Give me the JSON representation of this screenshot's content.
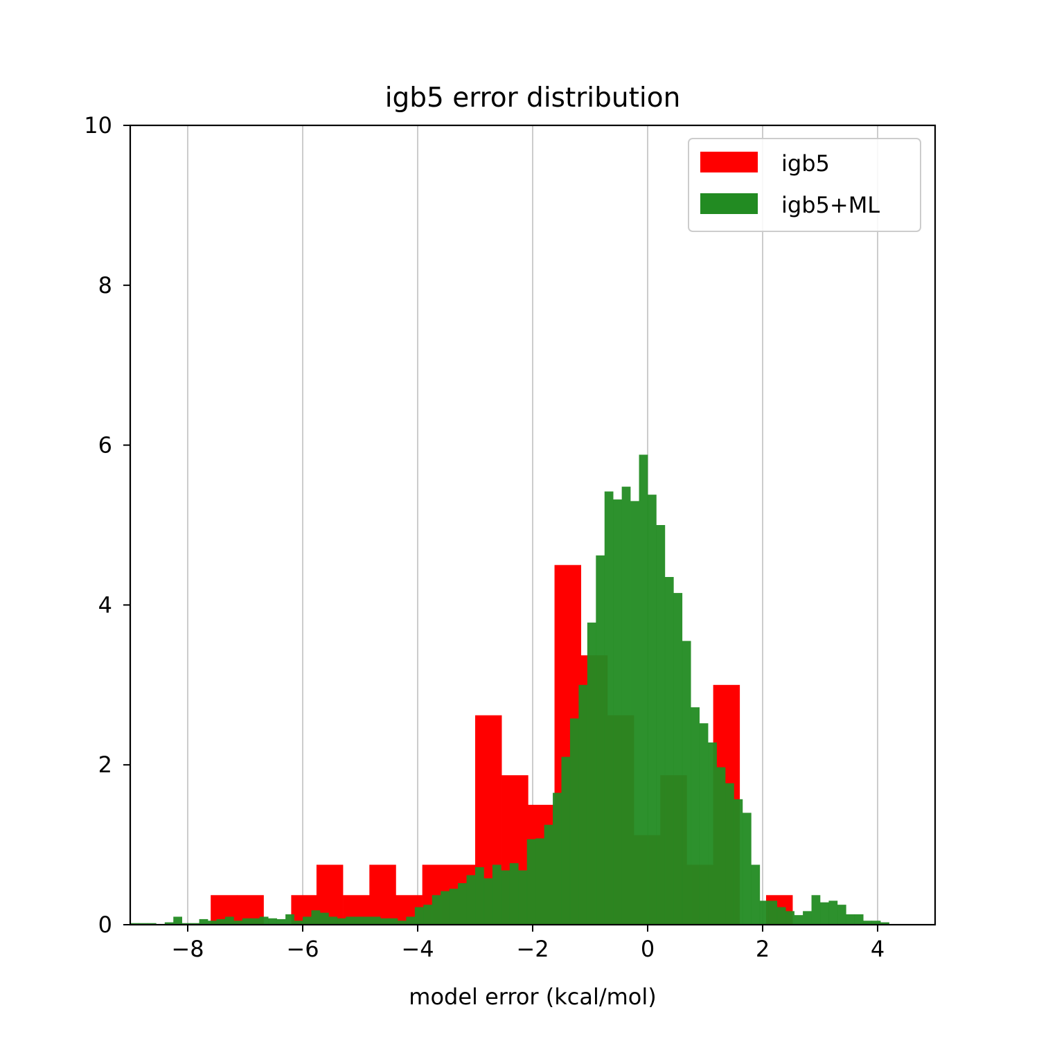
{
  "chart_data": {
    "type": "bar",
    "title": "igb5 error distribution",
    "xlabel": "model error (kcal/mol)",
    "ylabel": "",
    "xlim": [
      -9,
      5
    ],
    "ylim": [
      0,
      10
    ],
    "x_ticks": [
      -8,
      -6,
      -4,
      -2,
      0,
      2,
      4
    ],
    "x_tick_labels": [
      "−8",
      "−6",
      "−4",
      "−2",
      "0",
      "2",
      "4"
    ],
    "y_ticks": [
      0,
      2,
      4,
      6,
      8,
      10
    ],
    "y_tick_labels": [
      "0",
      "2",
      "4",
      "6",
      "8",
      "10"
    ],
    "grid": "vertical",
    "legend_position": "top-right",
    "series": [
      {
        "name": "igb5",
        "color": "#ff0000",
        "opacity": 1.0,
        "bin_edges": [
          -7.6,
          -7.14,
          -6.68,
          -6.2,
          -5.76,
          -5.3,
          -4.84,
          -4.38,
          -3.92,
          -3.46,
          -3.0,
          -2.54,
          -2.08,
          -1.62,
          -1.16,
          -0.7,
          -0.24,
          0.22,
          0.68,
          1.14,
          1.6,
          2.06,
          2.52
        ],
        "values": [
          0.37,
          0.37,
          0,
          0.37,
          0.75,
          0.37,
          0.75,
          0.37,
          0.75,
          0.75,
          2.62,
          1.87,
          1.5,
          4.5,
          3.37,
          2.62,
          1.12,
          1.87,
          0.75,
          3.0,
          0,
          0.37
        ]
      },
      {
        "name": "igb5+ML",
        "color": "#228b22",
        "opacity": 0.95,
        "bin_edges": [
          -9.0,
          -8.85,
          -8.7,
          -8.55,
          -8.4,
          -8.25,
          -8.1,
          -7.95,
          -7.8,
          -7.65,
          -7.5,
          -7.35,
          -7.2,
          -7.05,
          -6.9,
          -6.75,
          -6.6,
          -6.45,
          -6.3,
          -6.15,
          -6.0,
          -5.85,
          -5.7,
          -5.55,
          -5.4,
          -5.25,
          -5.1,
          -4.95,
          -4.8,
          -4.65,
          -4.5,
          -4.35,
          -4.2,
          -4.05,
          -3.9,
          -3.75,
          -3.6,
          -3.45,
          -3.3,
          -3.15,
          -3.0,
          -2.85,
          -2.7,
          -2.55,
          -2.4,
          -2.25,
          -2.1,
          -1.95,
          -1.8,
          -1.65,
          -1.5,
          -1.35,
          -1.2,
          -1.05,
          -0.9,
          -0.75,
          -0.6,
          -0.45,
          -0.3,
          -0.15,
          0.0,
          0.15,
          0.3,
          0.45,
          0.6,
          0.75,
          0.9,
          1.05,
          1.2,
          1.35,
          1.5,
          1.65,
          1.8,
          1.95,
          2.1,
          2.25,
          2.4,
          2.55,
          2.7,
          2.85,
          3.0,
          3.15,
          3.3,
          3.45,
          3.6,
          3.75,
          3.9,
          4.05,
          4.2,
          4.35
        ],
        "values": [
          0.02,
          0.02,
          0.02,
          0.0,
          0.03,
          0.1,
          0.02,
          0.02,
          0.07,
          0.05,
          0.07,
          0.1,
          0.05,
          0.08,
          0.08,
          0.1,
          0.08,
          0.07,
          0.13,
          0.05,
          0.1,
          0.18,
          0.15,
          0.1,
          0.08,
          0.1,
          0.1,
          0.1,
          0.1,
          0.08,
          0.08,
          0.05,
          0.1,
          0.22,
          0.25,
          0.37,
          0.42,
          0.45,
          0.52,
          0.62,
          0.72,
          0.58,
          0.75,
          0.68,
          0.77,
          0.68,
          1.07,
          1.08,
          1.25,
          1.65,
          2.1,
          2.58,
          3.0,
          3.78,
          4.62,
          5.42,
          5.32,
          5.48,
          5.3,
          5.88,
          5.38,
          5.0,
          4.35,
          4.15,
          3.55,
          2.72,
          2.52,
          2.28,
          1.97,
          1.77,
          1.57,
          1.4,
          0.75,
          0.3,
          0.3,
          0.22,
          0.17,
          0.12,
          0.17,
          0.37,
          0.28,
          0.3,
          0.25,
          0.13,
          0.13,
          0.05,
          0.05,
          0.03,
          0.0
        ]
      }
    ]
  }
}
